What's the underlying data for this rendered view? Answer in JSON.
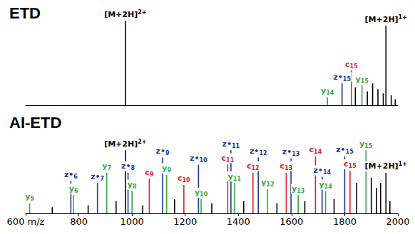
{
  "chart_data": [
    {
      "type": "bar",
      "title": "ETD",
      "xlim": [
        600,
        2000
      ],
      "ylim": [
        0,
        100
      ],
      "grid": false,
      "tick_labels": false,
      "x": [
        975,
        1735,
        1790,
        1825,
        1840,
        1865,
        1885,
        1905,
        1925,
        1945,
        1955,
        1975,
        1990
      ],
      "values": [
        85,
        8,
        22,
        35,
        18,
        20,
        14,
        22,
        16,
        12,
        80,
        10,
        6
      ],
      "labels": [
        "[M+2H]2+",
        "y14",
        "z•15",
        "c15",
        null,
        "y15",
        null,
        null,
        null,
        null,
        "[M+2H]1+",
        null,
        null
      ],
      "colors": [
        "#000000",
        "#34a94a",
        "#1d3a93",
        "#e0232a",
        "#000000",
        "#34a94a",
        "#000000",
        "#000000",
        "#000000",
        "#000000",
        "#000000",
        "#000000",
        "#000000"
      ]
    },
    {
      "type": "bar",
      "title": "AI-ETD",
      "xlim": [
        600,
        2000
      ],
      "ylim": [
        0,
        100
      ],
      "grid": false,
      "tick_labels": "x",
      "xticks": [
        {
          "value": 600,
          "label": "600 m/z"
        },
        800,
        1000,
        1200,
        1400,
        1600,
        1800,
        2000
      ],
      "x": [
        615,
        700,
        770,
        780,
        835,
        870,
        905,
        940,
        975,
        985,
        1000,
        1040,
        1065,
        1115,
        1130,
        1160,
        1195,
        1250,
        1260,
        1300,
        1360,
        1372,
        1385,
        1420,
        1455,
        1475,
        1510,
        1545,
        1580,
        1598,
        1625,
        1650,
        1690,
        1715,
        1728,
        1760,
        1800,
        1820,
        1845,
        1880,
        1900,
        1920,
        1935,
        1955,
        1970
      ],
      "values": [
        10,
        6,
        32,
        18,
        8,
        30,
        40,
        12,
        62,
        40,
        22,
        8,
        34,
        55,
        38,
        14,
        28,
        48,
        14,
        10,
        48,
        62,
        30,
        12,
        40,
        55,
        24,
        10,
        40,
        54,
        18,
        12,
        56,
        36,
        22,
        14,
        56,
        42,
        30,
        62,
        35,
        25,
        30,
        40,
        12
      ],
      "labels": [
        "y5",
        null,
        "z•6",
        "y6",
        null,
        "z•7",
        "y7",
        null,
        "[M+2H]2+",
        "z•8",
        "y8",
        null,
        "c9",
        "z•9",
        "y9",
        null,
        "c10",
        "z•10",
        "y10",
        null,
        "c11",
        "z•11",
        "y11",
        null,
        "c12",
        "z•12",
        "y12",
        null,
        "c13",
        "z•13",
        "y13",
        null,
        "c14",
        "z•14",
        "y14",
        null,
        "z•15",
        "c15",
        null,
        "y15",
        null,
        null,
        null,
        "[M+2H]1+",
        null
      ],
      "colors": [
        "#34a94a",
        "#000000",
        "#1d3a93",
        "#34a94a",
        "#000000",
        "#1d3a93",
        "#34a94a",
        "#000000",
        "#000000",
        "#1d3a93",
        "#34a94a",
        "#000000",
        "#e0232a",
        "#1d3a93",
        "#34a94a",
        "#000000",
        "#e0232a",
        "#1d3a93",
        "#34a94a",
        "#000000",
        "#e0232a",
        "#1d3a93",
        "#34a94a",
        "#000000",
        "#e0232a",
        "#1d3a93",
        "#34a94a",
        "#000000",
        "#e0232a",
        "#1d3a93",
        "#34a94a",
        "#000000",
        "#e0232a",
        "#1d3a93",
        "#34a94a",
        "#000000",
        "#1d3a93",
        "#e0232a",
        "#000000",
        "#34a94a",
        "#000000",
        "#000000",
        "#000000",
        "#000000",
        "#000000"
      ]
    }
  ]
}
